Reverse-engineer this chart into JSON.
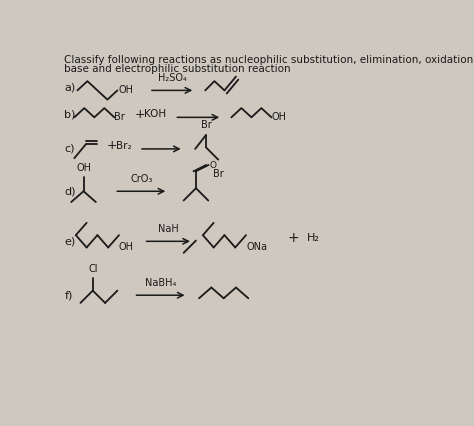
{
  "title_line1": "Classify following reactions as nucleophilic substitution, elimination, oxidation, reduction, acid-",
  "title_line2": "base and electrophilic substitution reaction",
  "background_color": "#cec8be",
  "text_color": "#1a1a1a",
  "title_fontsize": 7.5,
  "reactions": {
    "a": {
      "label": "a)",
      "reagent": "H₂SO₄"
    },
    "b": {
      "label": "b)",
      "plus_text": "+ KOH"
    },
    "c": {
      "label": "c)",
      "plus_text": "+ Br₂",
      "br_above": "Br",
      "br_below": "Br"
    },
    "d": {
      "label": "d)",
      "reagent": "CrO₃",
      "oh_label": "OH"
    },
    "e": {
      "label": "e)",
      "reagent": "NaH",
      "oh_label": "OH",
      "ona_label": "ONa",
      "h2_label": "H₂"
    },
    "f": {
      "label": "f)",
      "reagent": "NaBH₄",
      "cl_label": "Cl"
    }
  }
}
